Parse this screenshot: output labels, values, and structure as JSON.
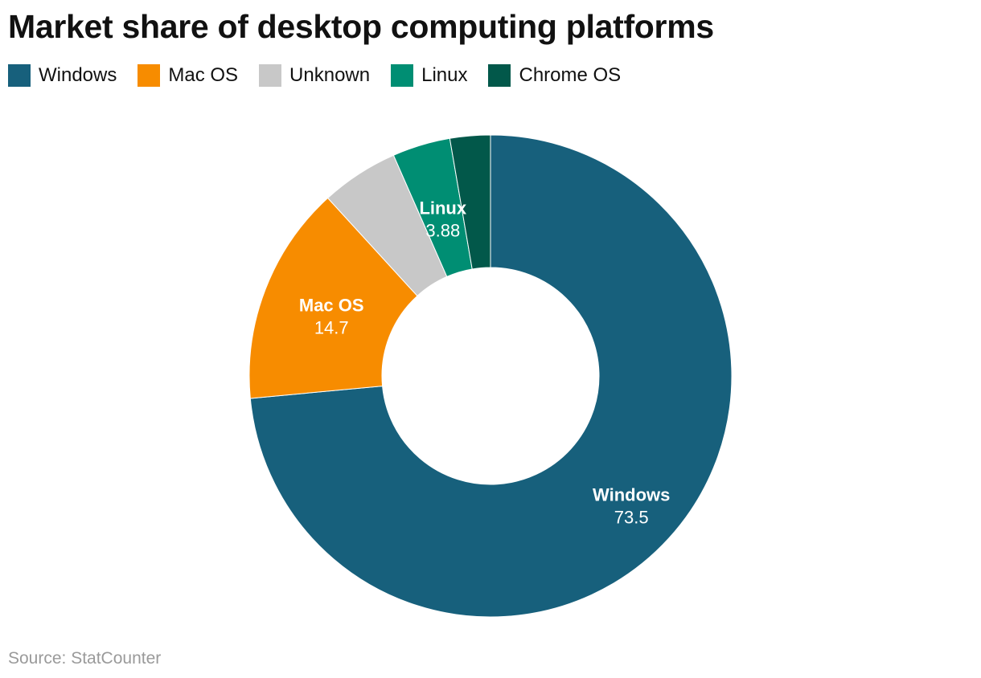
{
  "title": "Market share of desktop computing platforms",
  "source": "Source: StatCounter",
  "colors": {
    "Windows": "#17607c",
    "Mac OS": "#f78c00",
    "Unknown": "#c8c8c8",
    "Linux": "#008e73",
    "Chrome OS": "#02584a"
  },
  "legend": [
    {
      "label": "Windows",
      "color": "#17607c"
    },
    {
      "label": "Mac OS",
      "color": "#f78c00"
    },
    {
      "label": "Unknown",
      "color": "#c8c8c8"
    },
    {
      "label": "Linux",
      "color": "#008e73"
    },
    {
      "label": "Chrome OS",
      "color": "#02584a"
    }
  ],
  "chart_data": {
    "type": "pie",
    "subtype": "donut",
    "title": "Market share of desktop computing platforms",
    "categories": [
      "Windows",
      "Mac OS",
      "Unknown",
      "Linux",
      "Chrome OS"
    ],
    "values": [
      73.5,
      14.7,
      5.2,
      3.88,
      2.7
    ],
    "data_labels": [
      {
        "name": "Windows",
        "value": "73.5"
      },
      {
        "name": "Mac OS",
        "value": "14.7"
      },
      {
        "name": "Linux",
        "value": "3.88"
      }
    ],
    "legend_position": "top-left"
  }
}
